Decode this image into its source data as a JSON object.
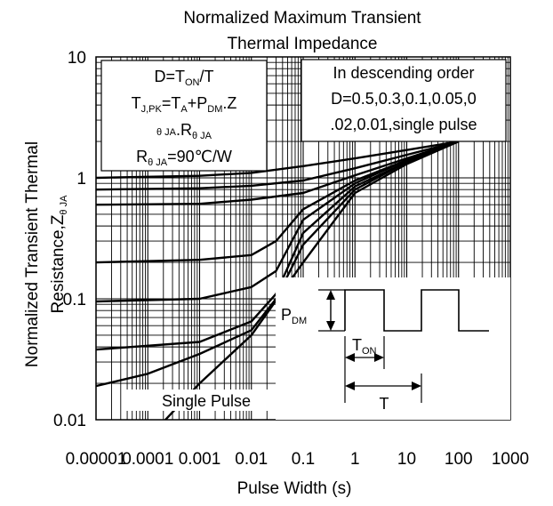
{
  "chart_data": {
    "type": "line",
    "title_lines": [
      "Normalized Maximum Transient",
      "Thermal Impedance"
    ],
    "xlabel": "Pulse Width (s)",
    "ylabel_lines": [
      "Normalized Transient Thermal",
      "Resistance,Z"
    ],
    "ylabel_sub": "θ JA",
    "x_scale": "log",
    "y_scale": "log",
    "xlim": [
      1e-05,
      1000
    ],
    "ylim": [
      0.01,
      10
    ],
    "x_ticks": [
      {
        "value": 1e-05,
        "label": "0.00001"
      },
      {
        "value": 0.0001,
        "label": "0.0001"
      },
      {
        "value": 0.001,
        "label": "0.001"
      },
      {
        "value": 0.01,
        "label": "0.01"
      },
      {
        "value": 0.1,
        "label": "0.1"
      },
      {
        "value": 1,
        "label": "1"
      },
      {
        "value": 10,
        "label": "10"
      },
      {
        "value": 100,
        "label": "100"
      },
      {
        "value": 1000,
        "label": "1000"
      }
    ],
    "y_ticks": [
      {
        "value": 0.01,
        "label": "0.01"
      },
      {
        "value": 0.1,
        "label": "0.1"
      },
      {
        "value": 1,
        "label": "1"
      },
      {
        "value": 10,
        "label": "10"
      }
    ],
    "grid": true,
    "formula_box": {
      "line1": {
        "main": "D=T",
        "sub": "ON",
        "tail": "/T"
      },
      "line2": {
        "a": "T",
        "a_sub": "J,PK",
        "b": "=T",
        "b_sub": "A",
        "c": "+P",
        "c_sub": "DM",
        "d": ".Z"
      },
      "line3": {
        "a_sub": "θ JA",
        "b": ".R",
        "b_sub": "θ JA"
      },
      "line4": {
        "a": "R",
        "a_sub": "θ JA",
        "b": "=90℃/W"
      }
    },
    "order_box": [
      "In descending order",
      "D=0.5,0.3,0.1,0.05,0",
      ".02,0.01,single pulse"
    ],
    "inset": {
      "pdm_main": "P",
      "pdm_sub": "DM",
      "ton_main": "T",
      "ton_sub": "ON",
      "t_label": "T"
    },
    "single_pulse_label": "Single Pulse",
    "series": [
      {
        "x": [
          1e-05,
          0.001,
          0.01,
          0.1,
          1,
          10,
          100
        ],
        "y": [
          1.0,
          1.04,
          1.1,
          1.25,
          1.45,
          1.7,
          2.0
        ]
      },
      {
        "x": [
          1e-05,
          0.001,
          0.01,
          0.1,
          1,
          10,
          100
        ],
        "y": [
          0.8,
          0.82,
          0.86,
          0.95,
          1.2,
          1.55,
          2.0
        ]
      },
      {
        "x": [
          1e-05,
          0.001,
          0.01,
          0.1,
          1,
          10,
          100
        ],
        "y": [
          0.6,
          0.61,
          0.66,
          0.75,
          1.05,
          1.45,
          2.0
        ]
      },
      {
        "x": [
          1e-05,
          0.001,
          0.01,
          0.03,
          0.1,
          1,
          10,
          100
        ],
        "y": [
          0.2,
          0.21,
          0.23,
          0.3,
          0.55,
          0.95,
          1.4,
          2.0
        ]
      },
      {
        "x": [
          1e-05,
          0.001,
          0.01,
          0.03,
          0.1,
          1,
          10,
          100
        ],
        "y": [
          0.095,
          0.1,
          0.125,
          0.17,
          0.45,
          0.9,
          1.4,
          2.0
        ]
      },
      {
        "x": [
          1e-05,
          0.001,
          0.01,
          0.03,
          0.1,
          1,
          10,
          100
        ],
        "y": [
          0.038,
          0.044,
          0.065,
          0.11,
          0.35,
          0.85,
          1.35,
          2.0
        ]
      },
      {
        "x": [
          1e-05,
          0.0001,
          0.001,
          0.01,
          0.03,
          0.1,
          1,
          10,
          100
        ],
        "y": [
          0.019,
          0.024,
          0.035,
          0.055,
          0.1,
          0.28,
          0.8,
          1.35,
          2.0
        ]
      },
      {
        "x": [
          0.0001,
          0.001,
          0.01,
          0.1,
          1,
          10,
          100
        ],
        "y": [
          0.007,
          0.02,
          0.05,
          0.2,
          0.75,
          1.3,
          2.0
        ]
      }
    ]
  }
}
